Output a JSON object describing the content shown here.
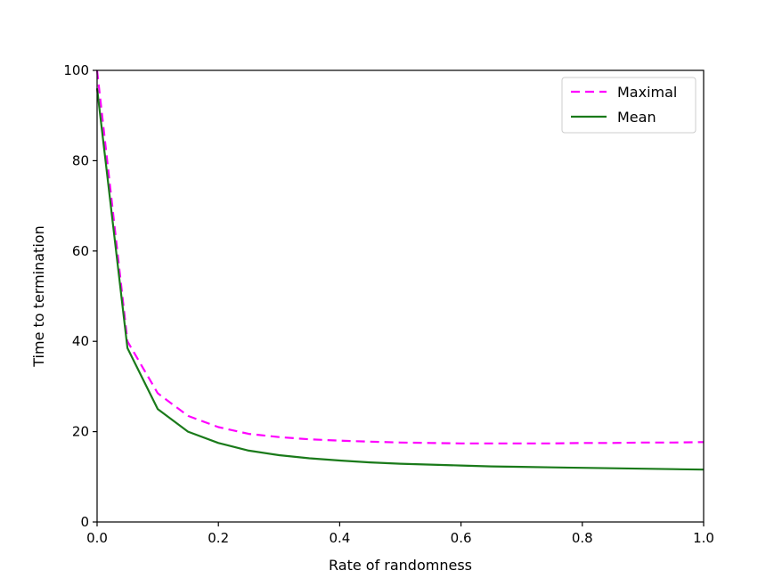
{
  "chart_data": {
    "type": "line",
    "title": "",
    "xlabel": "Rate of randomness",
    "ylabel": "Time to termination",
    "xlim": [
      0.0,
      1.0
    ],
    "ylim": [
      0,
      100
    ],
    "grid": false,
    "legend_position": "top-right",
    "x_ticks": [
      "0.0",
      "0.2",
      "0.4",
      "0.6",
      "0.8",
      "1.0"
    ],
    "y_ticks": [
      "0",
      "20",
      "40",
      "60",
      "80",
      "100"
    ],
    "series": [
      {
        "name": "Maximal",
        "color": "#ff00ff",
        "style": "dashed",
        "x": [
          0.0,
          0.05,
          0.1,
          0.15,
          0.2,
          0.25,
          0.3,
          0.35,
          0.4,
          0.45,
          0.5,
          0.55,
          0.6,
          0.65,
          0.7,
          0.75,
          0.8,
          0.85,
          0.9,
          0.95,
          1.0
        ],
        "y": [
          100,
          40,
          28.5,
          23.5,
          21,
          19.5,
          18.8,
          18.3,
          18,
          17.8,
          17.6,
          17.5,
          17.4,
          17.4,
          17.4,
          17.4,
          17.5,
          17.5,
          17.6,
          17.6,
          17.7
        ]
      },
      {
        "name": "Mean",
        "color": "#1a7a1a",
        "style": "solid",
        "x": [
          0.0,
          0.05,
          0.1,
          0.15,
          0.2,
          0.25,
          0.3,
          0.35,
          0.4,
          0.45,
          0.5,
          0.55,
          0.6,
          0.65,
          0.7,
          0.75,
          0.8,
          0.85,
          0.9,
          0.95,
          1.0
        ],
        "y": [
          96,
          38.5,
          25,
          20,
          17.5,
          15.8,
          14.8,
          14.1,
          13.6,
          13.2,
          12.9,
          12.7,
          12.5,
          12.3,
          12.2,
          12.1,
          12.0,
          11.9,
          11.8,
          11.7,
          11.6
        ]
      }
    ]
  }
}
